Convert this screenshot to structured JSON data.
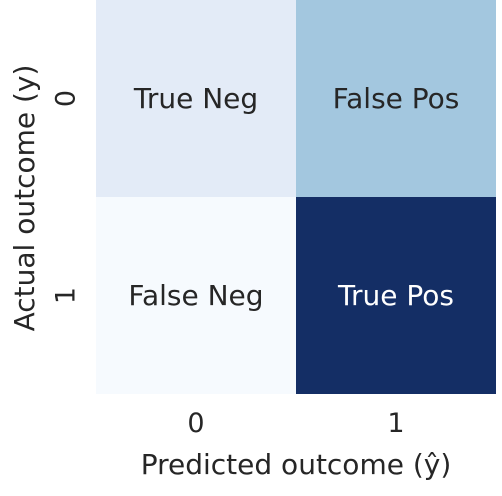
{
  "chart_data": {
    "type": "heatmap",
    "title": "",
    "xlabel": "Predicted outcome (ŷ)",
    "ylabel": "Actual outcome (y)",
    "x_categories": [
      "0",
      "1"
    ],
    "y_categories": [
      "0",
      "1"
    ],
    "cells": [
      {
        "row": 0,
        "col": 0,
        "label": "True Neg",
        "color": "#e3ebf7",
        "text_color": "#262626"
      },
      {
        "row": 0,
        "col": 1,
        "label": "False Pos",
        "color": "#a3c7df",
        "text_color": "#262626"
      },
      {
        "row": 1,
        "col": 0,
        "label": "False Neg",
        "color": "#f6fafe",
        "text_color": "#262626"
      },
      {
        "row": 1,
        "col": 1,
        "label": "True Pos",
        "color": "#142e65",
        "text_color": "#ffffff"
      }
    ],
    "colorbar": false,
    "grid": false
  }
}
